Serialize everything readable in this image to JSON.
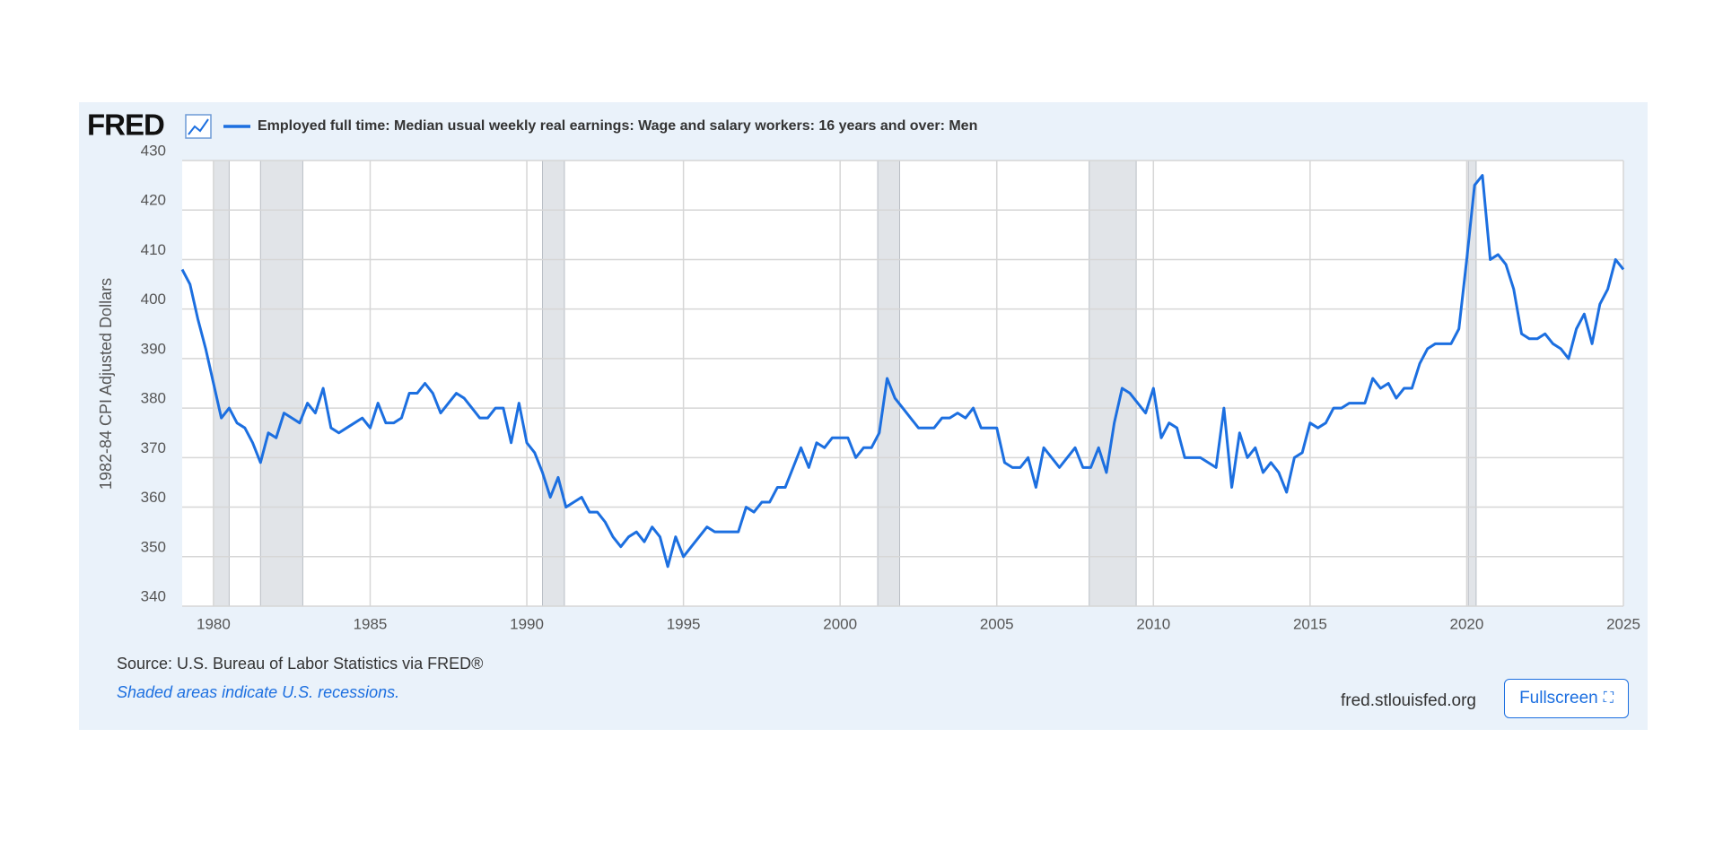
{
  "header": {
    "logo": "FRED"
  },
  "footer": {
    "source": "Source: U.S. Bureau of Labor Statistics via FRED®",
    "note": "Shaded areas indicate U.S. recessions.",
    "site": "fred.stlouisfed.org",
    "button": "Fullscreen"
  },
  "chart_data": {
    "type": "line",
    "ylabel": "1982-84 CPI Adjusted Dollars",
    "xlim": [
      1979,
      2025
    ],
    "xticks": [
      1980,
      1985,
      1990,
      1995,
      2000,
      2005,
      2010,
      2015,
      2020,
      2025
    ],
    "ylim": [
      340,
      430
    ],
    "yticks": [
      340,
      350,
      360,
      370,
      380,
      390,
      400,
      410,
      420,
      430
    ],
    "grid": true,
    "recessions": [
      [
        1980,
        1980.5
      ],
      [
        1981.5,
        1982.85
      ],
      [
        1990.5,
        1991.2
      ],
      [
        2001.2,
        2001.9
      ],
      [
        2007.95,
        2009.45
      ],
      [
        2020.05,
        2020.3
      ]
    ],
    "x": [
      1979,
      1979.25,
      1979.5,
      1979.75,
      1980,
      1980.25,
      1980.5,
      1980.75,
      1981,
      1981.25,
      1981.5,
      1981.75,
      1982,
      1982.25,
      1982.5,
      1982.75,
      1983,
      1983.25,
      1983.5,
      1983.75,
      1984,
      1984.25,
      1984.5,
      1984.75,
      1985,
      1985.25,
      1985.5,
      1985.75,
      1986,
      1986.25,
      1986.5,
      1986.75,
      1987,
      1987.25,
      1987.5,
      1987.75,
      1988,
      1988.25,
      1988.5,
      1988.75,
      1989,
      1989.25,
      1989.5,
      1989.75,
      1990,
      1990.25,
      1990.5,
      1990.75,
      1991,
      1991.25,
      1991.5,
      1991.75,
      1992,
      1992.25,
      1992.5,
      1992.75,
      1993,
      1993.25,
      1993.5,
      1993.75,
      1994,
      1994.25,
      1994.5,
      1994.75,
      1995,
      1995.25,
      1995.5,
      1995.75,
      1996,
      1996.25,
      1996.5,
      1996.75,
      1997,
      1997.25,
      1997.5,
      1997.75,
      1998,
      1998.25,
      1998.5,
      1998.75,
      1999,
      1999.25,
      1999.5,
      1999.75,
      2000,
      2000.25,
      2000.5,
      2000.75,
      2001,
      2001.25,
      2001.5,
      2001.75,
      2002,
      2002.25,
      2002.5,
      2002.75,
      2003,
      2003.25,
      2003.5,
      2003.75,
      2004,
      2004.25,
      2004.5,
      2004.75,
      2005,
      2005.25,
      2005.5,
      2005.75,
      2006,
      2006.25,
      2006.5,
      2006.75,
      2007,
      2007.25,
      2007.5,
      2007.75,
      2008,
      2008.25,
      2008.5,
      2008.75,
      2009,
      2009.25,
      2009.5,
      2009.75,
      2010,
      2010.25,
      2010.5,
      2010.75,
      2011,
      2011.25,
      2011.5,
      2011.75,
      2012,
      2012.25,
      2012.5,
      2012.75,
      2013,
      2013.25,
      2013.5,
      2013.75,
      2014,
      2014.25,
      2014.5,
      2014.75,
      2015,
      2015.25,
      2015.5,
      2015.75,
      2016,
      2016.25,
      2016.5,
      2016.75,
      2017,
      2017.25,
      2017.5,
      2017.75,
      2018,
      2018.25,
      2018.5,
      2018.75,
      2019,
      2019.25,
      2019.5,
      2019.75,
      2020,
      2020.25,
      2020.5,
      2020.75,
      2021,
      2021.25,
      2021.5,
      2021.75,
      2022,
      2022.25,
      2022.5,
      2022.75,
      2023,
      2023.25,
      2023.5,
      2023.75,
      2024,
      2024.25,
      2024.5,
      2024.75,
      2025
    ],
    "series": [
      {
        "name": "Employed full time: Median usual weekly real earnings: Wage and salary workers: 16 years and over: Men",
        "color": "#1c6fe0",
        "values": [
          408,
          405,
          398,
          392,
          385,
          378,
          380,
          377,
          376,
          373,
          369,
          375,
          374,
          379,
          378,
          377,
          381,
          379,
          384,
          376,
          375,
          376,
          377,
          378,
          376,
          381,
          377,
          377,
          378,
          383,
          383,
          385,
          383,
          379,
          381,
          383,
          382,
          380,
          378,
          378,
          380,
          380,
          373,
          381,
          373,
          371,
          367,
          362,
          366,
          360,
          361,
          362,
          359,
          359,
          357,
          354,
          352,
          354,
          355,
          353,
          356,
          354,
          348,
          354,
          350,
          352,
          354,
          356,
          355,
          355,
          355,
          355,
          360,
          359,
          361,
          361,
          364,
          364,
          368,
          372,
          368,
          373,
          372,
          374,
          374,
          374,
          370,
          372,
          372,
          375,
          386,
          382,
          380,
          378,
          376,
          376,
          376,
          378,
          378,
          379,
          378,
          380,
          376,
          376,
          376,
          369,
          368,
          368,
          370,
          364,
          372,
          370,
          368,
          370,
          372,
          368,
          368,
          372,
          367,
          377,
          384,
          383,
          381,
          379,
          384,
          374,
          377,
          376,
          370,
          370,
          370,
          369,
          368,
          380,
          364,
          375,
          370,
          372,
          367,
          369,
          367,
          363,
          370,
          371,
          377,
          376,
          377,
          380,
          380,
          381,
          381,
          381,
          386,
          384,
          385,
          382,
          384,
          384,
          389,
          392,
          393,
          393,
          393,
          396,
          410,
          425,
          427,
          410,
          411,
          409,
          404,
          395,
          394,
          394,
          395,
          393,
          392,
          390,
          396,
          399,
          393,
          401,
          404,
          410,
          408
        ]
      }
    ]
  }
}
